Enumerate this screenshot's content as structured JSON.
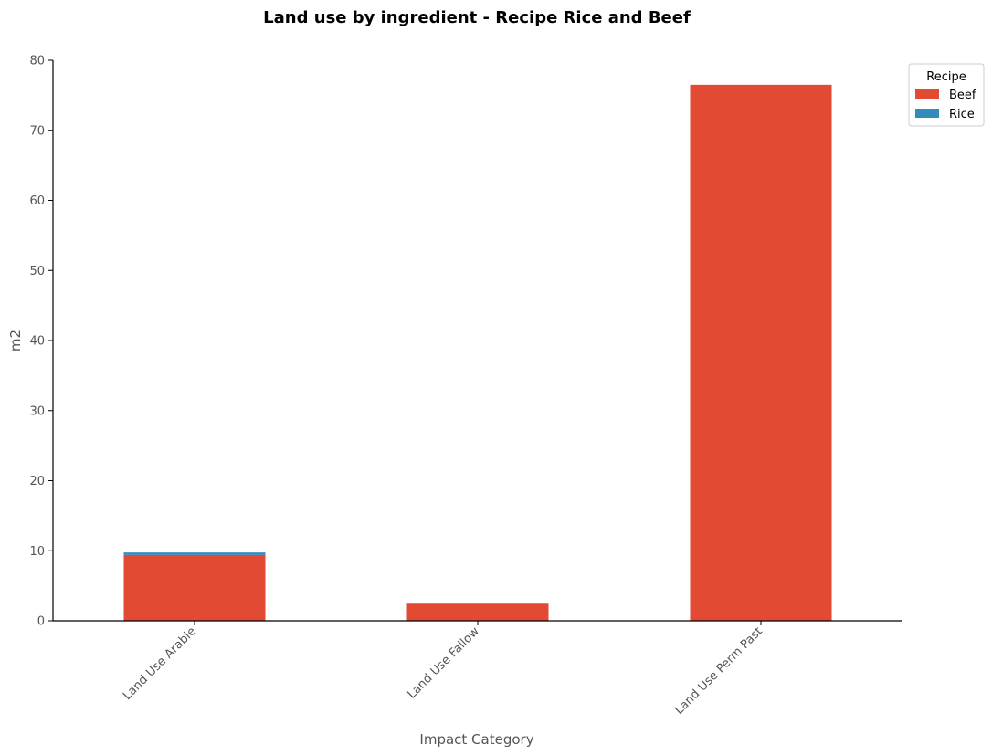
{
  "chart_data": {
    "type": "bar",
    "stacked": true,
    "title": "Land use by ingredient - Recipe Rice and Beef",
    "xlabel": "Impact Category",
    "ylabel": "m2",
    "categories": [
      "Land Use Arable",
      "Land Use Fallow",
      "Land Use Perm Past"
    ],
    "series": [
      {
        "name": "Beef",
        "color": "#E24A33",
        "values": [
          9.4,
          2.4,
          76.5
        ]
      },
      {
        "name": "Rice",
        "color": "#348ABD",
        "values": [
          0.35,
          0.05,
          0.0
        ]
      }
    ],
    "ylim": [
      0,
      80
    ],
    "yticks": [
      0,
      10,
      20,
      30,
      40,
      50,
      60,
      70,
      80
    ],
    "grid": false,
    "legend": {
      "title": "Recipe",
      "placement": "top-right"
    }
  }
}
